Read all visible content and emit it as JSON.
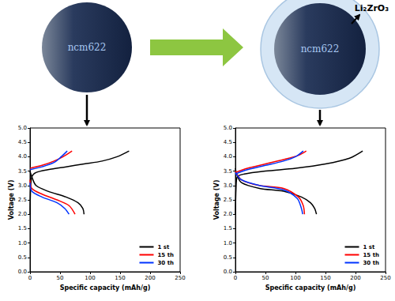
{
  "diagram": {
    "particles": [
      {
        "label": "ncm622"
      },
      {
        "label": "ncm622",
        "coating": "Li₂ZrO₃"
      }
    ]
  },
  "chart_data": [
    {
      "type": "line",
      "x_label": "Specific capacity (mAh/g)",
      "y_label": "Voltage (V)",
      "xlim": [
        0,
        250
      ],
      "xticks": [
        0,
        50,
        100,
        150,
        200,
        250
      ],
      "ylim": [
        0,
        5
      ],
      "yticks": [
        {
          "value": 0,
          "label": "0.0"
        },
        0.5,
        {
          "value": 1,
          "label": "1.0"
        },
        1.5,
        {
          "value": 2,
          "label": "2.0"
        },
        2.5,
        {
          "value": 3,
          "label": "3.0"
        },
        3.5,
        {
          "value": 4,
          "label": "4.0"
        },
        4.5,
        {
          "value": 5,
          "label": "5.0"
        }
      ],
      "grid": false,
      "legend": "lower right",
      "series": [
        {
          "name": "1 st",
          "color": "#000000",
          "x": [
            0,
            1,
            3,
            10,
            30,
            60,
            90,
            120,
            145,
            165,
            null,
            0,
            3,
            10,
            30,
            60,
            80,
            88,
            90
          ],
          "values": [
            2.0,
            2.9,
            3.3,
            3.45,
            3.55,
            3.65,
            3.75,
            3.85,
            4.0,
            4.2,
            null,
            3.5,
            3.3,
            3.0,
            2.8,
            2.6,
            2.4,
            2.2,
            2.0
          ]
        },
        {
          "name": "15 th",
          "color": "#ff0000",
          "x": [
            0,
            20,
            40,
            55,
            70,
            null,
            0,
            3,
            20,
            45,
            65,
            75
          ],
          "values": [
            3.6,
            3.7,
            3.85,
            4.0,
            4.2,
            null,
            3.2,
            2.9,
            2.7,
            2.5,
            2.3,
            2.0
          ]
        },
        {
          "name": "30 th",
          "color": "#0033ff",
          "x": [
            0,
            20,
            40,
            52,
            62,
            null,
            0,
            3,
            20,
            45,
            58,
            65
          ],
          "values": [
            3.55,
            3.65,
            3.8,
            4.0,
            4.2,
            null,
            3.1,
            2.8,
            2.6,
            2.4,
            2.2,
            2.0
          ]
        }
      ]
    },
    {
      "type": "line",
      "x_label": "Specific capacity (mAh/g)",
      "y_label": "Voltage (V)",
      "xlim": [
        0,
        250
      ],
      "xticks": [
        0,
        50,
        100,
        150,
        200,
        250
      ],
      "ylim": [
        0,
        5
      ],
      "yticks": [
        {
          "value": 0,
          "label": "0.0"
        },
        0.5,
        {
          "value": 1,
          "label": "1.0"
        },
        1.5,
        {
          "value": 2,
          "label": "2.0"
        },
        2.5,
        {
          "value": 3,
          "label": "3.0"
        },
        3.5,
        {
          "value": 4,
          "label": "4.0"
        },
        4.5,
        {
          "value": 5,
          "label": "5.0"
        }
      ],
      "grid": false,
      "legend": "lower right",
      "series": [
        {
          "name": "1 st",
          "color": "#000000",
          "x": [
            0,
            1,
            3,
            15,
            50,
            100,
            150,
            190,
            212,
            null,
            0,
            2,
            10,
            40,
            80,
            110,
            125,
            132,
            135
          ],
          "values": [
            2.0,
            2.9,
            3.3,
            3.4,
            3.5,
            3.6,
            3.75,
            3.95,
            4.2,
            null,
            3.6,
            3.4,
            3.1,
            2.9,
            2.8,
            2.6,
            2.4,
            2.2,
            2.0
          ]
        },
        {
          "name": "15 th",
          "color": "#ff0000",
          "x": [
            0,
            20,
            50,
            80,
            105,
            118,
            null,
            0,
            10,
            40,
            80,
            105,
            113,
            115
          ],
          "values": [
            3.45,
            3.6,
            3.75,
            3.9,
            4.05,
            4.2,
            null,
            3.5,
            3.2,
            3.0,
            2.9,
            2.6,
            2.3,
            2.0
          ]
        },
        {
          "name": "30 th",
          "color": "#0033ff",
          "x": [
            0,
            20,
            50,
            80,
            100,
            113,
            null,
            0,
            10,
            40,
            80,
            103,
            110,
            112
          ],
          "values": [
            3.4,
            3.55,
            3.7,
            3.85,
            4.0,
            4.2,
            null,
            3.45,
            3.2,
            3.0,
            2.85,
            2.55,
            2.2,
            2.0
          ]
        }
      ]
    }
  ]
}
